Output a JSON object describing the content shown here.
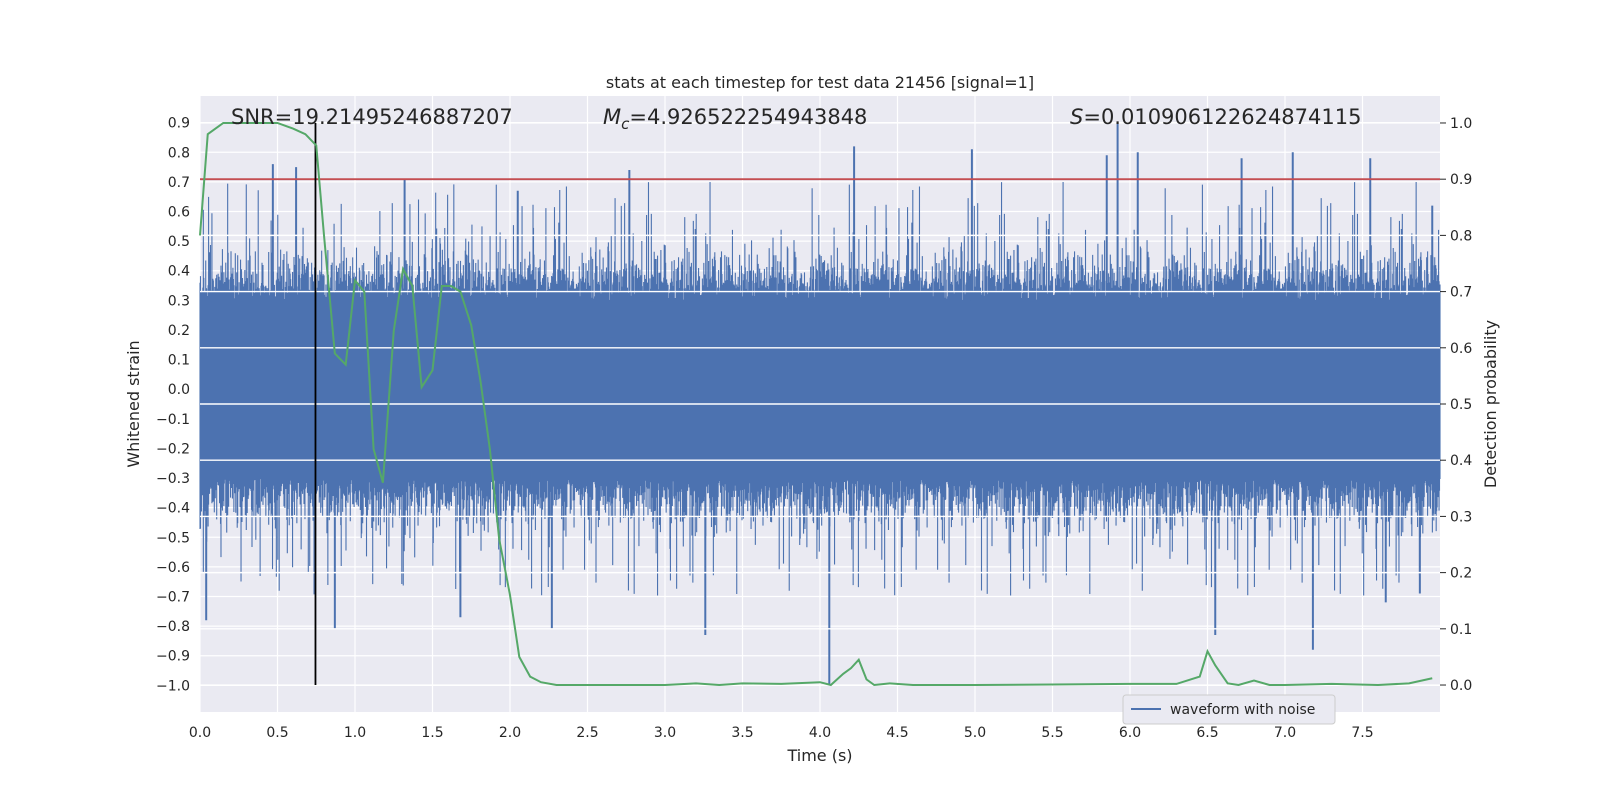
{
  "chart_data": {
    "type": "line",
    "title": "stats at each timestep for test data 21456 [signal=1]",
    "xlabel": "Time (s)",
    "ylabel": "Whitened strain",
    "y2label": "Detection probability",
    "xlim": [
      0.0,
      8.0
    ],
    "ylim": [
      -1.09,
      0.99
    ],
    "y2lim": [
      -0.048,
      1.048
    ],
    "x_ticks": [
      0.0,
      0.5,
      1.0,
      1.5,
      2.0,
      2.5,
      3.0,
      3.5,
      4.0,
      4.5,
      5.0,
      5.5,
      6.0,
      6.5,
      7.0,
      7.5
    ],
    "x_tick_labels": [
      "0.0",
      "0.5",
      "1.0",
      "1.5",
      "2.0",
      "2.5",
      "3.0",
      "3.5",
      "4.0",
      "4.5",
      "5.0",
      "5.5",
      "6.0",
      "6.5",
      "7.0",
      "7.5"
    ],
    "y_ticks": [
      0.9,
      0.8,
      0.7,
      0.6,
      0.5,
      0.4,
      0.3,
      0.2,
      0.1,
      0.0,
      -0.1,
      -0.2,
      -0.3,
      -0.4,
      -0.5,
      -0.6,
      -0.7,
      -0.8,
      -0.9,
      -1.0
    ],
    "y_tick_labels": [
      "0.9",
      "0.8",
      "0.7",
      "0.6",
      "0.5",
      "0.4",
      "0.3",
      "0.2",
      "0.1",
      "0.0",
      "−0.1",
      "−0.2",
      "−0.3",
      "−0.4",
      "−0.5",
      "−0.6",
      "−0.7",
      "−0.8",
      "−0.9",
      "−1.0"
    ],
    "y2_ticks": [
      1.0,
      0.9,
      0.8,
      0.7,
      0.6,
      0.5,
      0.4,
      0.3,
      0.2,
      0.1,
      0.0
    ],
    "y2_tick_labels": [
      "1.0",
      "0.9",
      "0.8",
      "0.7",
      "0.6",
      "0.5",
      "0.4",
      "0.3",
      "0.2",
      "0.1",
      "0.0"
    ],
    "grid": true,
    "legend_position": "bottom-right",
    "annotations": {
      "snr": "SNR=19.21495246887207",
      "mc_symbol": "M",
      "mc_sub": "c",
      "mc_value": "=4.926522254943848",
      "s_symbol": "S",
      "s_value": "=0.010906122624874115"
    },
    "threshold_line": {
      "y2": 0.9,
      "color": "#c44e52"
    },
    "vertical_marker": {
      "x": 0.745,
      "color": "#000000"
    },
    "series": [
      {
        "name": "waveform with noise",
        "axis": "left",
        "color": "#4c72b0",
        "kind": "dense-noise",
        "samples": 8192,
        "envelope_core": 0.3,
        "spike_peaks_pos": [
          [
            0.47,
            0.76
          ],
          [
            0.62,
            0.75
          ],
          [
            1.32,
            0.71
          ],
          [
            2.05,
            0.67
          ],
          [
            2.77,
            0.74
          ],
          [
            4.22,
            0.82
          ],
          [
            4.98,
            0.81
          ],
          [
            5.85,
            0.79
          ],
          [
            5.92,
            0.9
          ],
          [
            6.05,
            0.8
          ],
          [
            6.72,
            0.78
          ],
          [
            7.05,
            0.8
          ],
          [
            7.55,
            0.78
          ],
          [
            7.95,
            0.62
          ]
        ],
        "spike_peaks_neg": [
          [
            0.04,
            -0.78
          ],
          [
            0.87,
            -0.81
          ],
          [
            1.68,
            -0.77
          ],
          [
            2.27,
            -0.81
          ],
          [
            3.26,
            -0.83
          ],
          [
            4.06,
            -1.0
          ],
          [
            6.55,
            -0.83
          ],
          [
            7.18,
            -0.88
          ],
          [
            7.65,
            -0.72
          ],
          [
            7.87,
            -0.69
          ]
        ]
      },
      {
        "name": "detection probability",
        "axis": "right",
        "color": "#55a868",
        "x": [
          0.0,
          0.05,
          0.1,
          0.15,
          0.2,
          0.3,
          0.4,
          0.5,
          0.6,
          0.68,
          0.75,
          0.8,
          0.87,
          0.94,
          1.0,
          1.06,
          1.12,
          1.18,
          1.25,
          1.31,
          1.37,
          1.43,
          1.5,
          1.56,
          1.62,
          1.68,
          1.75,
          1.81,
          1.87,
          1.93,
          2.0,
          2.06,
          2.13,
          2.2,
          2.3,
          2.5,
          2.75,
          3.0,
          3.2,
          3.35,
          3.5,
          3.75,
          4.0,
          4.07,
          4.15,
          4.2,
          4.25,
          4.3,
          4.35,
          4.45,
          4.6,
          5.0,
          5.5,
          6.0,
          6.3,
          6.45,
          6.5,
          6.55,
          6.63,
          6.7,
          6.8,
          6.9,
          7.0,
          7.3,
          7.6,
          7.8,
          7.95
        ],
        "y": [
          0.8,
          0.98,
          0.99,
          1.0,
          1.0,
          1.0,
          1.0,
          1.0,
          0.99,
          0.98,
          0.96,
          0.8,
          0.59,
          0.57,
          0.72,
          0.7,
          0.42,
          0.36,
          0.63,
          0.74,
          0.71,
          0.53,
          0.56,
          0.71,
          0.71,
          0.7,
          0.64,
          0.54,
          0.42,
          0.26,
          0.16,
          0.05,
          0.015,
          0.005,
          0.0,
          0.0,
          0.0,
          0.0,
          0.003,
          0.0,
          0.003,
          0.002,
          0.005,
          0.0,
          0.02,
          0.03,
          0.045,
          0.01,
          0.0,
          0.003,
          0.0,
          0.0,
          0.001,
          0.002,
          0.002,
          0.015,
          0.06,
          0.035,
          0.003,
          0.0,
          0.008,
          0.0,
          0.0,
          0.002,
          0.0,
          0.003,
          0.012
        ]
      }
    ]
  }
}
